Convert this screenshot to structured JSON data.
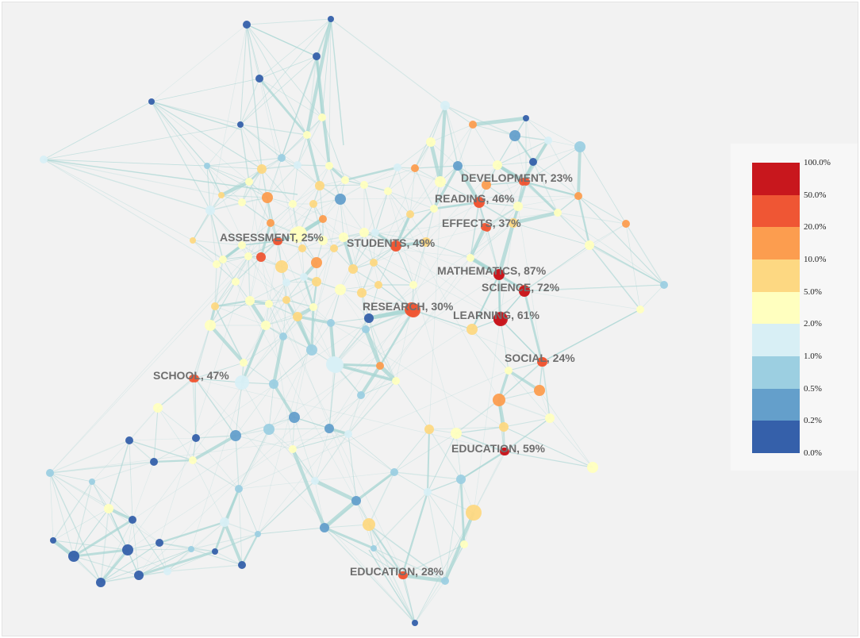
{
  "labels": [
    {
      "id": "development",
      "text": "DEVELOPMENT, 23%"
    },
    {
      "id": "reading",
      "text": "READING, 46%"
    },
    {
      "id": "effects",
      "text": "EFFECTS, 37%"
    },
    {
      "id": "assessment",
      "text": "ASSESSMENT, 25%"
    },
    {
      "id": "students",
      "text": "STUDENTS, 49%"
    },
    {
      "id": "mathematics",
      "text": "MATHEMATICS, 87%"
    },
    {
      "id": "science",
      "text": "SCIENCE, 72%"
    },
    {
      "id": "research",
      "text": "RESEARCH, 30%"
    },
    {
      "id": "learning",
      "text": "LEARNING, 61%"
    },
    {
      "id": "social",
      "text": "SOCIAL, 24%"
    },
    {
      "id": "school",
      "text": "SCHOOL, 47%"
    },
    {
      "id": "education-1",
      "text": "EDUCATION, 59%"
    },
    {
      "id": "education-2",
      "text": "EDUCATION, 28%"
    }
  ],
  "legend": {
    "ticks": [
      "100.0%",
      "50.0%",
      "20.0%",
      "10.0%",
      "5.0%",
      "2.0%",
      "1.0%",
      "0.5%",
      "0.2%",
      "0.0%"
    ],
    "colors": [
      "#c8171d",
      "#ef5634",
      "#fc9d4f",
      "#fdd882",
      "#ffffbf",
      "#d8eff5",
      "#9ccfe1",
      "#649fcb",
      "#3560aa"
    ]
  },
  "colors": {
    "background": "#f2f2f2",
    "edge": "#a8d5d3"
  }
}
